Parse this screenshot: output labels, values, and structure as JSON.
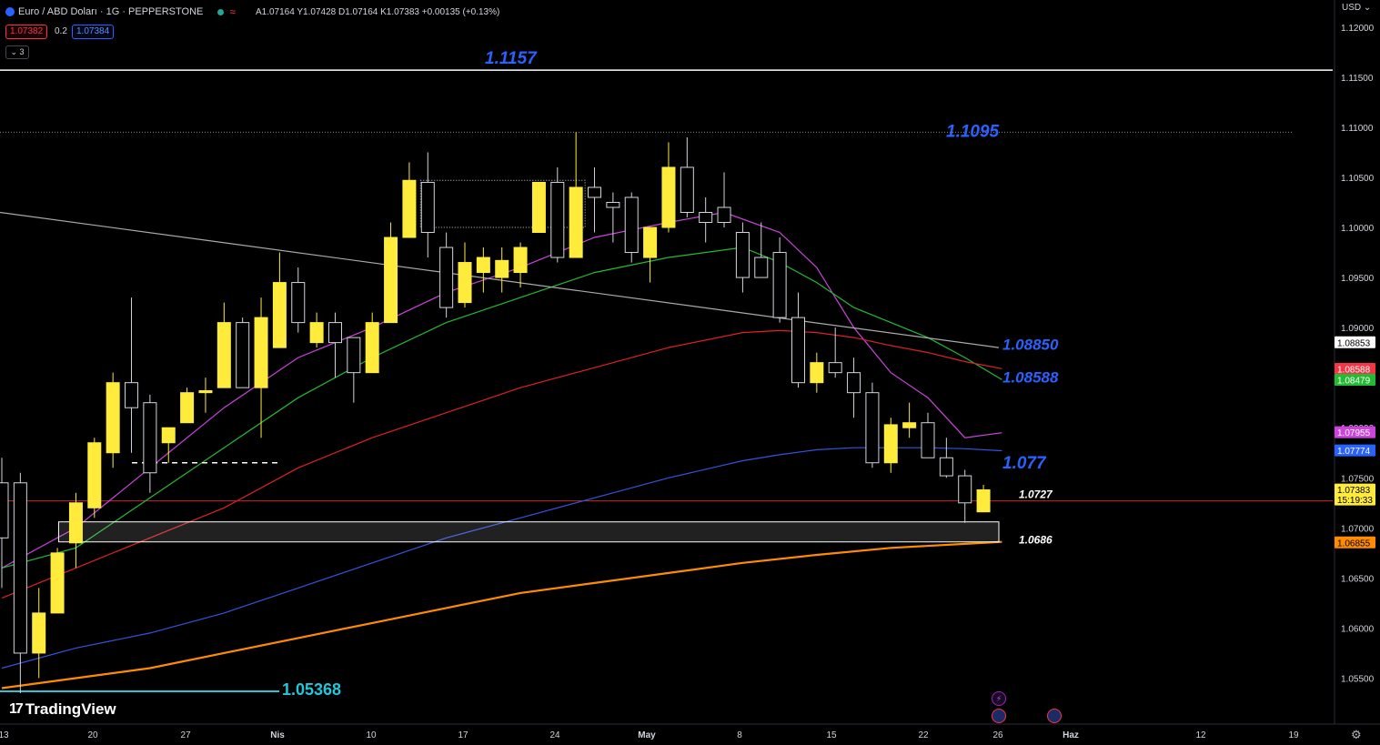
{
  "header": {
    "symbol": "Euro / ABD Doları · 1G · PEPPERSTONE",
    "ohlc": "A1.07164  Y1.07428  D1.07164  K1.07383  +0.00135 (+0.13%)",
    "sell_price": "1.07382",
    "spread": "0.2",
    "buy_price": "1.07384",
    "indicators_toggle": "3"
  },
  "currency": "USD",
  "brand": "TradingView",
  "colors": {
    "bg": "#000000",
    "candle_up": "#ffeb3b",
    "candle_down": "#000000",
    "candle_border": "#d1d4dc",
    "ma_purple": "#cc44dd",
    "ma_green": "#22bb33",
    "ma_red": "#dd2222",
    "ma_blue": "#3355dd",
    "ma_orange": "#ff8c00",
    "trendline": "#aaaaaa",
    "level_label": "#2962ff",
    "cyan": "#26c6da"
  },
  "chart_data": {
    "type": "candlestick",
    "x_labels": [
      "13",
      "20",
      "27",
      "Nis",
      "10",
      "17",
      "24",
      "May",
      "8",
      "15",
      "22",
      "26",
      "Haz",
      "12",
      "19"
    ],
    "y_ticks": [
      "1.12000",
      "1.11500",
      "1.11000",
      "1.10500",
      "1.10000",
      "1.09500",
      "1.09000",
      "1.08500",
      "1.08000",
      "1.07500",
      "1.07000",
      "1.06500",
      "1.06000",
      "1.05500"
    ],
    "ylim": [
      1.0515,
      1.1208
    ],
    "candles": [
      {
        "o": 1.0745,
        "h": 1.077,
        "l": 1.064,
        "c": 1.069
      },
      {
        "o": 1.0745,
        "h": 1.0755,
        "l": 1.0535,
        "c": 1.0575
      },
      {
        "o": 1.0575,
        "h": 1.064,
        "l": 1.055,
        "c": 1.0615
      },
      {
        "o": 1.0615,
        "h": 1.068,
        "l": 1.0615,
        "c": 1.0675
      },
      {
        "o": 1.0685,
        "h": 1.0735,
        "l": 1.066,
        "c": 1.0725
      },
      {
        "o": 1.072,
        "h": 1.079,
        "l": 1.071,
        "c": 1.0785
      },
      {
        "o": 1.0775,
        "h": 1.0855,
        "l": 1.076,
        "c": 1.0845
      },
      {
        "o": 1.0845,
        "h": 1.093,
        "l": 1.0775,
        "c": 1.082
      },
      {
        "o": 1.0825,
        "h": 1.0833,
        "l": 1.0735,
        "c": 1.0755
      },
      {
        "o": 1.0785,
        "h": 1.08,
        "l": 1.0765,
        "c": 1.08
      },
      {
        "o": 1.0805,
        "h": 1.084,
        "l": 1.0805,
        "c": 1.0835
      },
      {
        "o": 1.0835,
        "h": 1.085,
        "l": 1.0815,
        "c": 1.0837
      },
      {
        "o": 1.084,
        "h": 1.0925,
        "l": 1.084,
        "c": 1.0905
      },
      {
        "o": 1.0905,
        "h": 1.091,
        "l": 1.084,
        "c": 1.084
      },
      {
        "o": 1.084,
        "h": 1.093,
        "l": 1.079,
        "c": 1.091
      },
      {
        "o": 1.088,
        "h": 1.0975,
        "l": 1.088,
        "c": 1.0945
      },
      {
        "o": 1.0945,
        "h": 1.096,
        "l": 1.0895,
        "c": 1.0905
      },
      {
        "o": 1.0885,
        "h": 1.0915,
        "l": 1.088,
        "c": 1.0905
      },
      {
        "o": 1.0905,
        "h": 1.0915,
        "l": 1.085,
        "c": 1.0885
      },
      {
        "o": 1.089,
        "h": 1.089,
        "l": 1.0825,
        "c": 1.0855
      },
      {
        "o": 1.0855,
        "h": 1.0915,
        "l": 1.0855,
        "c": 1.0905
      },
      {
        "o": 1.0905,
        "h": 1.1005,
        "l": 1.0905,
        "c": 1.099
      },
      {
        "o": 1.099,
        "h": 1.1065,
        "l": 1.099,
        "c": 1.1047
      },
      {
        "o": 1.1045,
        "h": 1.1075,
        "l": 1.097,
        "c": 1.0995
      },
      {
        "o": 1.098,
        "h": 1.0995,
        "l": 1.091,
        "c": 1.092
      },
      {
        "o": 1.0925,
        "h": 1.0985,
        "l": 1.092,
        "c": 1.0965
      },
      {
        "o": 1.0955,
        "h": 1.098,
        "l": 1.0935,
        "c": 1.097
      },
      {
        "o": 1.095,
        "h": 1.098,
        "l": 1.0935,
        "c": 1.0967
      },
      {
        "o": 1.0955,
        "h": 1.0985,
        "l": 1.094,
        "c": 1.098
      },
      {
        "o": 1.0995,
        "h": 1.1045,
        "l": 1.0995,
        "c": 1.1045
      },
      {
        "o": 1.1045,
        "h": 1.106,
        "l": 1.0965,
        "c": 1.097
      },
      {
        "o": 1.097,
        "h": 1.1095,
        "l": 1.097,
        "c": 1.104
      },
      {
        "o": 1.104,
        "h": 1.106,
        "l": 1.0995,
        "c": 1.103
      },
      {
        "o": 1.1025,
        "h": 1.1035,
        "l": 1.0985,
        "c": 1.102
      },
      {
        "o": 1.103,
        "h": 1.1035,
        "l": 1.0965,
        "c": 1.0975
      },
      {
        "o": 1.097,
        "h": 1.1,
        "l": 1.0945,
        "c": 1.1
      },
      {
        "o": 1.1,
        "h": 1.1085,
        "l": 1.0995,
        "c": 1.106
      },
      {
        "o": 1.106,
        "h": 1.109,
        "l": 1.101,
        "c": 1.1015
      },
      {
        "o": 1.1015,
        "h": 1.103,
        "l": 1.0985,
        "c": 1.1005
      },
      {
        "o": 1.102,
        "h": 1.1055,
        "l": 1.1,
        "c": 1.1005
      },
      {
        "o": 1.0995,
        "h": 1.1005,
        "l": 1.0935,
        "c": 1.095
      },
      {
        "o": 1.097,
        "h": 1.1005,
        "l": 1.095,
        "c": 1.095
      },
      {
        "o": 1.0975,
        "h": 1.099,
        "l": 1.0905,
        "c": 1.091
      },
      {
        "o": 1.091,
        "h": 1.0935,
        "l": 1.084,
        "c": 1.0845
      },
      {
        "o": 1.0845,
        "h": 1.0875,
        "l": 1.0835,
        "c": 1.0865
      },
      {
        "o": 1.0865,
        "h": 1.09,
        "l": 1.085,
        "c": 1.0855
      },
      {
        "o": 1.0855,
        "h": 1.087,
        "l": 1.081,
        "c": 1.0835
      },
      {
        "o": 1.0835,
        "h": 1.0845,
        "l": 1.076,
        "c": 1.0765
      },
      {
        "o": 1.0765,
        "h": 1.081,
        "l": 1.0755,
        "c": 1.0803
      },
      {
        "o": 1.08,
        "h": 1.0825,
        "l": 1.079,
        "c": 1.0805
      },
      {
        "o": 1.0805,
        "h": 1.0815,
        "l": 1.077,
        "c": 1.077
      },
      {
        "o": 1.077,
        "h": 1.079,
        "l": 1.075,
        "c": 1.0752
      },
      {
        "o": 1.0752,
        "h": 1.0758,
        "l": 1.0705,
        "c": 1.0725
      },
      {
        "o": 1.0716,
        "h": 1.0743,
        "l": 1.0716,
        "c": 1.0738
      }
    ],
    "moving_averages": {
      "purple": [
        [
          0,
          1.066
        ],
        [
          4,
          1.07
        ],
        [
          8,
          1.076
        ],
        [
          12,
          1.082
        ],
        [
          16,
          1.087
        ],
        [
          20,
          1.09
        ],
        [
          24,
          1.0935
        ],
        [
          28,
          1.096
        ],
        [
          32,
          1.099
        ],
        [
          36,
          1.1005
        ],
        [
          39,
          1.1015
        ],
        [
          42,
          1.0995
        ],
        [
          44,
          1.096
        ],
        [
          46,
          1.09
        ],
        [
          48,
          1.0855
        ],
        [
          50,
          1.083
        ],
        [
          52,
          1.079
        ],
        [
          54,
          1.0795
        ]
      ],
      "green": [
        [
          0,
          1.066
        ],
        [
          4,
          1.068
        ],
        [
          8,
          1.073
        ],
        [
          12,
          1.078
        ],
        [
          16,
          1.083
        ],
        [
          20,
          1.087
        ],
        [
          24,
          1.0905
        ],
        [
          28,
          1.093
        ],
        [
          32,
          1.0955
        ],
        [
          36,
          1.097
        ],
        [
          40,
          1.098
        ],
        [
          42,
          1.0965
        ],
        [
          44,
          1.0945
        ],
        [
          46,
          1.092
        ],
        [
          48,
          1.0905
        ],
        [
          50,
          1.089
        ],
        [
          52,
          1.087
        ],
        [
          54,
          1.0848
        ]
      ],
      "red": [
        [
          0,
          1.063
        ],
        [
          4,
          1.066
        ],
        [
          8,
          1.069
        ],
        [
          12,
          1.072
        ],
        [
          16,
          1.076
        ],
        [
          20,
          1.079
        ],
        [
          24,
          1.0815
        ],
        [
          28,
          1.084
        ],
        [
          32,
          1.086
        ],
        [
          36,
          1.088
        ],
        [
          40,
          1.0895
        ],
        [
          42,
          1.0897
        ],
        [
          44,
          1.0895
        ],
        [
          46,
          1.089
        ],
        [
          48,
          1.0882
        ],
        [
          50,
          1.0875
        ],
        [
          52,
          1.0866
        ],
        [
          54,
          1.0859
        ]
      ],
      "blue": [
        [
          0,
          1.056
        ],
        [
          4,
          1.058
        ],
        [
          8,
          1.0595
        ],
        [
          12,
          1.0615
        ],
        [
          16,
          1.064
        ],
        [
          20,
          1.0665
        ],
        [
          24,
          1.069
        ],
        [
          28,
          1.071
        ],
        [
          32,
          1.073
        ],
        [
          36,
          1.075
        ],
        [
          40,
          1.0767
        ],
        [
          42,
          1.0773
        ],
        [
          44,
          1.0778
        ],
        [
          46,
          1.078
        ],
        [
          48,
          1.078
        ],
        [
          50,
          1.078
        ],
        [
          52,
          1.0779
        ],
        [
          54,
          1.0777
        ]
      ],
      "orange": [
        [
          0,
          1.054
        ],
        [
          4,
          1.055
        ],
        [
          8,
          1.056
        ],
        [
          12,
          1.0575
        ],
        [
          16,
          1.059
        ],
        [
          20,
          1.0605
        ],
        [
          24,
          1.062
        ],
        [
          28,
          1.0635
        ],
        [
          32,
          1.0645
        ],
        [
          36,
          1.0655
        ],
        [
          40,
          1.0665
        ],
        [
          44,
          1.0673
        ],
        [
          48,
          1.068
        ],
        [
          52,
          1.0684
        ],
        [
          54,
          1.0686
        ]
      ]
    },
    "levels": [
      {
        "label": "1.1157",
        "value": 1.1157
      },
      {
        "label": "1.1095",
        "value": 1.1095
      },
      {
        "label": "1.08850",
        "value": 1.0885
      },
      {
        "label": "1.08588",
        "value": 1.08588
      },
      {
        "label": "1.077",
        "value": 1.077
      },
      {
        "label": "1.0727",
        "value": 1.0727
      },
      {
        "label": "1.0686",
        "value": 1.0686
      },
      {
        "label": "1.05368",
        "value": 1.05368
      }
    ],
    "price_tags": [
      {
        "text": "1.08853",
        "value": 1.08853,
        "bg": "#ffffff",
        "fg": "#000000"
      },
      {
        "text": "1.08588",
        "value": 1.08588,
        "bg": "#f23645",
        "fg": "#ffffff"
      },
      {
        "text": "1.08479",
        "value": 1.08479,
        "bg": "#22bb33",
        "fg": "#ffffff"
      },
      {
        "text": "1.07955",
        "value": 1.07955,
        "bg": "#cc44dd",
        "fg": "#ffffff"
      },
      {
        "text": "1.07774",
        "value": 1.07774,
        "bg": "#2962ff",
        "fg": "#ffffff"
      },
      {
        "text": "1.07383",
        "value": 1.07383,
        "bg": "#ffeb3b",
        "fg": "#000000",
        "sub": "15:19:33"
      },
      {
        "text": "1.06855",
        "value": 1.06855,
        "bg": "#ff8c00",
        "fg": "#000000"
      }
    ]
  }
}
